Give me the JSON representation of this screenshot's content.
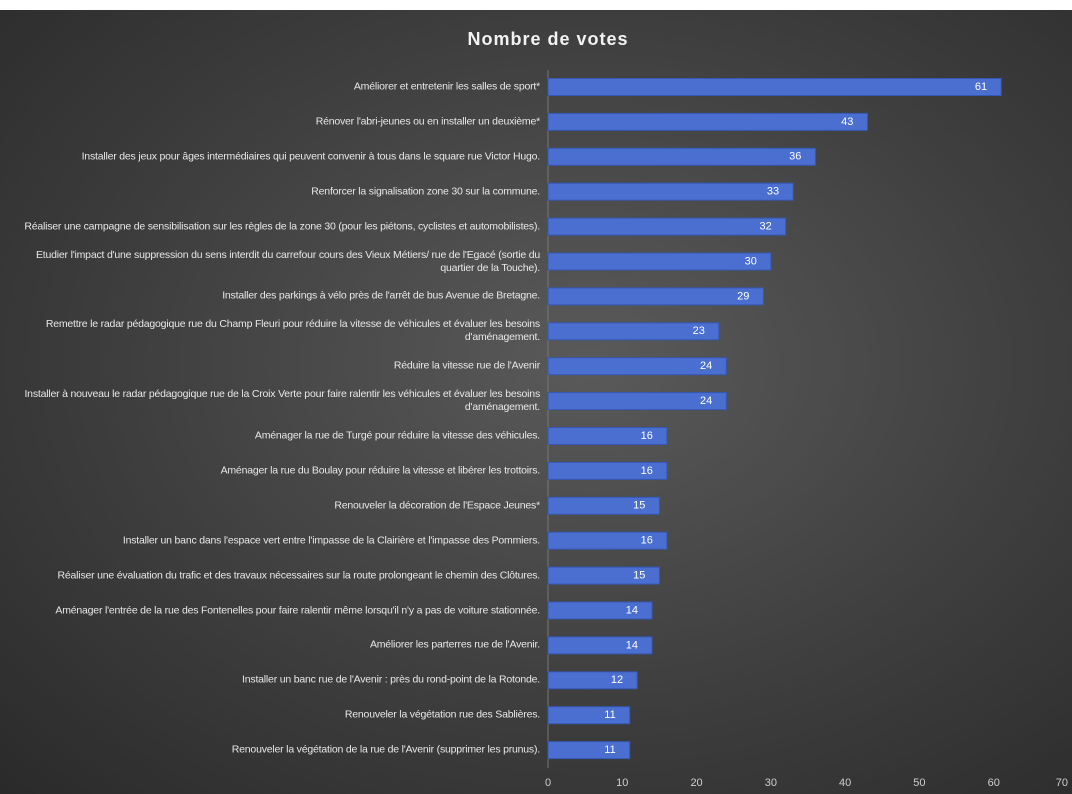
{
  "chart_data": {
    "type": "barh",
    "title": "Nombre de votes",
    "categories": [
      "Améliorer et entretenir les salles de sport*",
      "Rénover l'abri-jeunes ou en installer un deuxième*",
      "Installer des jeux pour âges intermédiaires qui peuvent convenir à tous dans le square rue Victor Hugo.",
      "Renforcer la signalisation zone 30 sur la commune.",
      "Réaliser une campagne de sensibilisation sur les règles de la zone 30 (pour les piétons, cyclistes et automobilistes).",
      "Etudier l'impact d'une suppression du sens interdit du carrefour cours des Vieux Métiers/ rue de l'Egacé (sortie du quartier de la Touche).",
      "Installer des parkings à vélo près de l'arrêt de bus Avenue de Bretagne.",
      "Remettre le radar pédagogique rue du Champ Fleuri pour réduire la vitesse de véhicules et évaluer les besoins d'aménagement.",
      "Réduire la vitesse rue de l'Avenir",
      "Installer à nouveau le radar pédagogique rue de la Croix Verte pour faire ralentir les véhicules et évaluer les besoins d'aménagement.",
      "Aménager la rue de Turgé pour réduire la vitesse des véhicules.",
      "Aménager la rue du Boulay pour réduire la vitesse et libérer les trottoirs.",
      "Renouveler la décoration de l'Espace Jeunes*",
      "Installer un banc dans l'espace vert entre l'impasse de la Clairière et l'impasse des Pommiers.",
      "Réaliser une évaluation du trafic et des travaux nécessaires sur la route prolongeant le chemin des Clôtures.",
      "Aménager l'entrée de la rue des Fontenelles pour faire ralentir même lorsqu'il n'y a pas de voiture stationnée.",
      "Améliorer les parterres rue de l'Avenir.",
      "Installer un banc rue de l'Avenir : près du rond-point de la Rotonde.",
      "Renouveler la végétation rue des Sablières.",
      "Renouveler la végétation de la rue de l'Avenir (supprimer les prunus)."
    ],
    "values": [
      61,
      43,
      36,
      33,
      32,
      30,
      29,
      23,
      24,
      24,
      16,
      16,
      15,
      16,
      15,
      14,
      14,
      12,
      11,
      11
    ],
    "color": "#4a6fd1",
    "xlim": [
      0,
      70
    ],
    "xticks": [
      0,
      10,
      20,
      30,
      40,
      50,
      60,
      70
    ],
    "grid": false
  }
}
